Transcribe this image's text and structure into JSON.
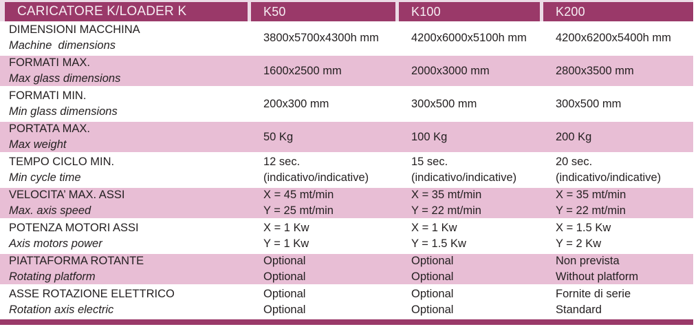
{
  "colors": {
    "header_bg": "#9a3969",
    "header_text": "#f7eef4",
    "row_pink": "#e8bed5",
    "row_white": "#ffffff",
    "frame_light": "#ecdbe6",
    "text_dark": "#242021",
    "bottom_bar": "#9a3969"
  },
  "table": {
    "title": "CARICATORE K/LOADER K",
    "columns": [
      "K50",
      "K100",
      "K200"
    ],
    "rows": [
      {
        "label_it": "DIMENSIONI MACCHINA",
        "label_en": "Machine  dimensions",
        "values": [
          [
            "3800x5700x4300h mm"
          ],
          [
            "4200x6000x5100h mm"
          ],
          [
            "4200x6200x5400h mm"
          ]
        ]
      },
      {
        "label_it": "FORMATI MAX.",
        "label_en": "Max glass dimensions",
        "values": [
          [
            "1600x2500 mm"
          ],
          [
            "2000x3000 mm"
          ],
          [
            "2800x3500 mm"
          ]
        ]
      },
      {
        "label_it": "FORMATI MIN.",
        "label_en": "Min glass dimensions",
        "values": [
          [
            "200x300 mm"
          ],
          [
            "300x500 mm"
          ],
          [
            "300x500 mm"
          ]
        ]
      },
      {
        "label_it": "PORTATA MAX.",
        "label_en": "Max weight",
        "values": [
          [
            "50 Kg"
          ],
          [
            "100 Kg"
          ],
          [
            "200 Kg"
          ]
        ]
      },
      {
        "label_it": "TEMPO CICLO MIN.",
        "label_en": "Min cycle time",
        "values": [
          [
            "12 sec.",
            "(indicativo/indicative)"
          ],
          [
            "15 sec.",
            "(indicativo/indicative)"
          ],
          [
            "20 sec.",
            "(indicativo/indicative)"
          ]
        ]
      },
      {
        "label_it": "VELOCITA’ MAX. ASSI",
        "label_en": "Max. axis speed",
        "values": [
          [
            "X = 45 mt/min",
            "Y = 25 mt/min"
          ],
          [
            "X = 35 mt/min",
            "Y = 22 mt/min"
          ],
          [
            "X = 35 mt/min",
            "Y = 22 mt/min"
          ]
        ]
      },
      {
        "label_it": "POTENZA MOTORI ASSI",
        "label_en": "Axis motors power",
        "values": [
          [
            "X = 1 Kw",
            "Y = 1 Kw"
          ],
          [
            "X = 1 Kw",
            "Y = 1.5 Kw"
          ],
          [
            "X = 1.5 Kw",
            "Y = 2 Kw"
          ]
        ]
      },
      {
        "label_it": "PIATTAFORMA ROTANTE",
        "label_en": "Rotating platform",
        "values": [
          [
            "Optional",
            "Optional"
          ],
          [
            "Optional",
            "Optional"
          ],
          [
            "Non prevista",
            "Without platform"
          ]
        ]
      },
      {
        "label_it": "ASSE ROTAZIONE ELETTRICO",
        "label_en": "Rotation axis electric",
        "values": [
          [
            "Optional",
            "Optional"
          ],
          [
            "Optional",
            "Optional"
          ],
          [
            "Fornite di serie",
            "Standard"
          ]
        ]
      }
    ]
  }
}
